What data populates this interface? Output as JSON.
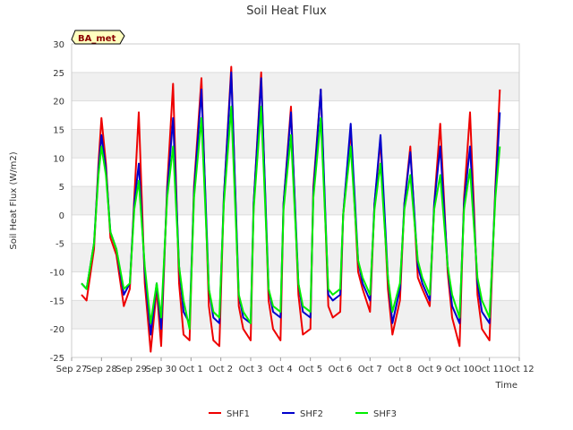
{
  "chart_data": {
    "type": "line",
    "title": "Soil Heat Flux",
    "xlabel": "Time",
    "ylabel": "Soil Heat Flux (W/m2)",
    "ylim": [
      -25,
      30
    ],
    "yticks": [
      -25,
      -20,
      -15,
      -10,
      -5,
      0,
      5,
      10,
      15,
      20,
      25,
      30
    ],
    "xlim": [
      0,
      15
    ],
    "x_tick_labels": [
      "Sep 27",
      "Sep 28",
      "Sep 29",
      "Sep 30",
      "Oct 1",
      "Oct 2",
      "Oct 3",
      "Oct 4",
      "Oct 5",
      "Oct 6",
      "Oct 7",
      "Oct 8",
      "Oct 9",
      "Oct 10",
      "Oct 11",
      "Oct 12"
    ],
    "badge": "BA_met",
    "series": [
      {
        "name": "SHF1",
        "color": "#ee0000",
        "x": [
          0.33,
          0.5,
          0.75,
          0.9,
          1.0,
          1.15,
          1.3,
          1.5,
          1.75,
          1.95,
          2.1,
          2.25,
          2.45,
          2.65,
          2.85,
          3.0,
          3.2,
          3.4,
          3.6,
          3.75,
          3.95,
          4.1,
          4.35,
          4.6,
          4.75,
          4.95,
          5.1,
          5.35,
          5.6,
          5.75,
          6.0,
          6.1,
          6.35,
          6.6,
          6.75,
          7.0,
          7.1,
          7.35,
          7.6,
          7.75,
          8.0,
          8.1,
          8.35,
          8.6,
          8.75,
          9.0,
          9.1,
          9.35,
          9.6,
          9.75,
          10.0,
          10.15,
          10.35,
          10.6,
          10.75,
          11.0,
          11.15,
          11.35,
          11.6,
          11.75,
          12.0,
          12.15,
          12.35,
          12.6,
          12.75,
          13.0,
          13.15,
          13.35,
          13.6,
          13.75,
          14.0,
          14.2,
          14.35
        ],
        "y": [
          -14,
          -15,
          -6,
          9,
          17,
          9,
          -4,
          -7,
          -16,
          -13,
          3,
          18,
          -12,
          -24,
          -13,
          -23,
          5,
          23,
          -12,
          -21,
          -22,
          5,
          24,
          -16,
          -22,
          -23,
          3,
          26,
          -16,
          -20,
          -22,
          2,
          25,
          -15,
          -20,
          -22,
          2,
          19,
          -14,
          -21,
          -20,
          5,
          22,
          -16,
          -18,
          -17,
          0,
          15,
          -10,
          -13,
          -17,
          2,
          13,
          -13,
          -21,
          -15,
          2,
          12,
          -11,
          -13,
          -16,
          2,
          16,
          -10,
          -18,
          -23,
          3,
          18,
          -14,
          -20,
          -22,
          5,
          22
        ]
      },
      {
        "name": "SHF2",
        "color": "#0000cc",
        "x": [
          0.33,
          0.5,
          0.75,
          0.9,
          1.0,
          1.15,
          1.3,
          1.5,
          1.75,
          1.95,
          2.1,
          2.25,
          2.45,
          2.65,
          2.85,
          3.0,
          3.2,
          3.4,
          3.6,
          3.75,
          3.95,
          4.1,
          4.35,
          4.6,
          4.75,
          4.95,
          5.1,
          5.35,
          5.6,
          5.75,
          6.0,
          6.1,
          6.35,
          6.6,
          6.75,
          7.0,
          7.1,
          7.35,
          7.6,
          7.75,
          8.0,
          8.1,
          8.35,
          8.6,
          8.75,
          9.0,
          9.1,
          9.35,
          9.6,
          9.75,
          10.0,
          10.15,
          10.35,
          10.6,
          10.75,
          11.0,
          11.15,
          11.35,
          11.6,
          11.75,
          12.0,
          12.15,
          12.35,
          12.6,
          12.75,
          13.0,
          13.15,
          13.35,
          13.6,
          13.75,
          14.0,
          14.2,
          14.35
        ],
        "y": [
          -12,
          -13,
          -5,
          8,
          14,
          8,
          -3,
          -6,
          -14,
          -12,
          2,
          9,
          -10,
          -21,
          -12,
          -20,
          4,
          17,
          -9,
          -17,
          -19,
          4,
          22,
          -13,
          -18,
          -19,
          3,
          25,
          -14,
          -18,
          -19,
          2,
          24,
          -13,
          -17,
          -18,
          2,
          18,
          -12,
          -17,
          -18,
          4,
          22,
          -14,
          -15,
          -14,
          0,
          16,
          -8,
          -12,
          -15,
          2,
          14,
          -11,
          -19,
          -13,
          2,
          11,
          -9,
          -12,
          -15,
          2,
          12,
          -9,
          -16,
          -19,
          2,
          12,
          -12,
          -17,
          -19,
          4,
          18
        ]
      },
      {
        "name": "SHF3",
        "color": "#00ee00",
        "x": [
          0.33,
          0.5,
          0.75,
          0.9,
          1.0,
          1.15,
          1.3,
          1.5,
          1.75,
          1.95,
          2.1,
          2.25,
          2.45,
          2.65,
          2.85,
          3.0,
          3.2,
          3.4,
          3.6,
          3.75,
          3.95,
          4.1,
          4.35,
          4.6,
          4.75,
          4.95,
          5.1,
          5.35,
          5.6,
          5.75,
          6.0,
          6.1,
          6.35,
          6.6,
          6.75,
          7.0,
          7.1,
          7.35,
          7.6,
          7.75,
          8.0,
          8.1,
          8.35,
          8.6,
          8.75,
          9.0,
          9.1,
          9.35,
          9.6,
          9.75,
          10.0,
          10.15,
          10.35,
          10.6,
          10.75,
          11.0,
          11.15,
          11.35,
          11.6,
          11.75,
          12.0,
          12.15,
          12.35,
          12.6,
          12.75,
          13.0,
          13.15,
          13.35,
          13.6,
          13.75,
          14.0,
          14.2,
          14.35
        ],
        "y": [
          -12,
          -13,
          -5,
          7,
          12,
          7,
          -3,
          -6,
          -13,
          -12,
          1,
          6,
          -9,
          -19,
          -12,
          -18,
          3,
          12,
          -9,
          -15,
          -20,
          3,
          17,
          -13,
          -17,
          -18,
          2,
          19,
          -14,
          -17,
          -19,
          1,
          19,
          -13,
          -16,
          -17,
          1,
          14,
          -12,
          -16,
          -17,
          3,
          17,
          -13,
          -14,
          -13,
          0,
          12,
          -8,
          -11,
          -14,
          1,
          9,
          -11,
          -17,
          -12,
          1,
          7,
          -8,
          -11,
          -14,
          1,
          7,
          -9,
          -14,
          -18,
          1,
          8,
          -11,
          -15,
          -18,
          3,
          12
        ]
      }
    ]
  }
}
